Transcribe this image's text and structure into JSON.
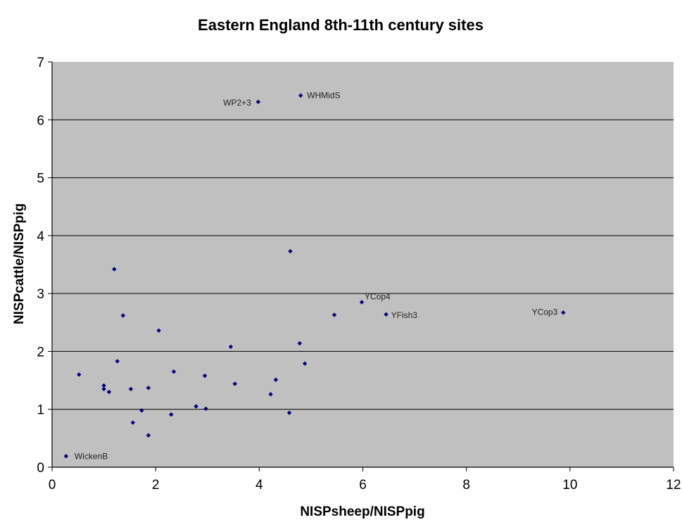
{
  "chart_data": {
    "type": "scatter",
    "title": "Eastern England 8th-11th century sites",
    "xlabel": "NISPsheep/NISPpig",
    "ylabel": "NISPcattle/NISPpig",
    "xlim": [
      0,
      12
    ],
    "ylim": [
      0,
      7
    ],
    "xticks": [
      0,
      2,
      4,
      6,
      8,
      10,
      12
    ],
    "yticks": [
      0,
      1,
      2,
      3,
      4,
      5,
      6,
      7
    ],
    "grid": "horizontal",
    "legend": "none",
    "colors": {
      "plot_background": "#c0c0c0",
      "marker": "#000080",
      "gridline": "#000000"
    },
    "points": [
      {
        "x": 0.27,
        "y": 0.19,
        "label": "WickenB"
      },
      {
        "x": 0.52,
        "y": 1.6
      },
      {
        "x": 1.0,
        "y": 1.41
      },
      {
        "x": 1.0,
        "y": 1.35
      },
      {
        "x": 1.1,
        "y": 1.3
      },
      {
        "x": 1.2,
        "y": 3.42
      },
      {
        "x": 1.26,
        "y": 1.83
      },
      {
        "x": 1.37,
        "y": 2.62
      },
      {
        "x": 1.52,
        "y": 1.35
      },
      {
        "x": 1.56,
        "y": 0.77
      },
      {
        "x": 1.73,
        "y": 0.98
      },
      {
        "x": 1.86,
        "y": 1.37
      },
      {
        "x": 1.86,
        "y": 0.55
      },
      {
        "x": 2.06,
        "y": 2.36
      },
      {
        "x": 2.3,
        "y": 0.91
      },
      {
        "x": 2.35,
        "y": 1.65
      },
      {
        "x": 2.78,
        "y": 1.05
      },
      {
        "x": 2.95,
        "y": 1.58
      },
      {
        "x": 2.97,
        "y": 1.01
      },
      {
        "x": 3.45,
        "y": 2.08
      },
      {
        "x": 3.53,
        "y": 1.44
      },
      {
        "x": 3.98,
        "y": 6.31,
        "label": "WP2+3"
      },
      {
        "x": 4.22,
        "y": 1.26
      },
      {
        "x": 4.32,
        "y": 1.51
      },
      {
        "x": 4.58,
        "y": 0.94
      },
      {
        "x": 4.6,
        "y": 3.73
      },
      {
        "x": 4.78,
        "y": 2.14
      },
      {
        "x": 4.8,
        "y": 6.42,
        "label": "WHMidS"
      },
      {
        "x": 4.88,
        "y": 1.79
      },
      {
        "x": 5.45,
        "y": 2.63
      },
      {
        "x": 5.98,
        "y": 2.85,
        "label": "YCop4"
      },
      {
        "x": 6.45,
        "y": 2.64,
        "label": "YFish3"
      },
      {
        "x": 9.87,
        "y": 2.67,
        "label": "YCop3"
      }
    ]
  }
}
